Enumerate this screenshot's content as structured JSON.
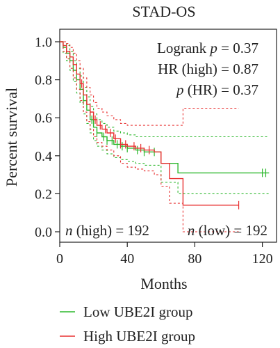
{
  "chart_data": {
    "type": "line",
    "title": "STAD-OS",
    "xlabel": "Months",
    "ylabel": "Percent survival",
    "xlim": [
      0,
      125
    ],
    "ylim": [
      0,
      1.05
    ],
    "x_ticks": [
      0,
      40,
      80,
      120
    ],
    "y_ticks": [
      0.0,
      0.2,
      0.4,
      0.6,
      0.8,
      1.0
    ],
    "x_tick_labels": [
      "0",
      "40",
      "80",
      "120"
    ],
    "y_tick_labels": [
      "0.0",
      "0.2",
      "0.4",
      "0.6",
      "0.8",
      "1.0"
    ],
    "grid": false,
    "legend_position": "bottom",
    "annotations": {
      "logrank": {
        "label": "Logrank ",
        "p_symbol": "p",
        "rest": " = 0.37"
      },
      "hr": "HR (high) = 0.87",
      "p_hr": {
        "p_symbol": "p",
        "rest": " (HR) = 0.37"
      },
      "n_high": {
        "n_symbol": "n",
        "rest": " (high) = 192"
      },
      "n_low": {
        "n_symbol": "n",
        "rest": " (low) = 192"
      }
    },
    "series": [
      {
        "name": "Low UBE2I group",
        "color": "#2db82d",
        "x": [
          0,
          2,
          4,
          6,
          8,
          10,
          12,
          14,
          16,
          18,
          20,
          22,
          25,
          28,
          32,
          36,
          40,
          45,
          50,
          55,
          60,
          65,
          70,
          80,
          90,
          100,
          110,
          120,
          124
        ],
        "y": [
          1.0,
          0.97,
          0.94,
          0.9,
          0.85,
          0.8,
          0.75,
          0.69,
          0.64,
          0.59,
          0.55,
          0.52,
          0.5,
          0.48,
          0.46,
          0.45,
          0.44,
          0.43,
          0.42,
          0.42,
          0.36,
          0.36,
          0.31,
          0.31,
          0.31,
          0.31,
          0.31,
          0.31,
          0.31
        ],
        "ci_upper": [
          1.0,
          1.0,
          0.98,
          0.95,
          0.9,
          0.86,
          0.82,
          0.76,
          0.71,
          0.66,
          0.62,
          0.59,
          0.57,
          0.55,
          0.53,
          0.52,
          0.51,
          0.5,
          0.5,
          0.5,
          0.5,
          0.5,
          0.5,
          0.5,
          0.5,
          0.5,
          0.5,
          0.5,
          0.5
        ],
        "ci_lower": [
          1.0,
          0.94,
          0.9,
          0.85,
          0.79,
          0.73,
          0.68,
          0.62,
          0.57,
          0.52,
          0.48,
          0.45,
          0.43,
          0.41,
          0.39,
          0.38,
          0.37,
          0.36,
          0.35,
          0.35,
          0.26,
          0.26,
          0.2,
          0.2,
          0.2,
          0.2,
          0.2,
          0.2,
          0.2
        ],
        "censor_x": [
          14,
          19,
          22,
          26,
          28,
          31,
          34,
          37,
          40,
          46,
          50,
          56,
          120,
          122
        ]
      },
      {
        "name": "High UBE2I group",
        "color": "#e83030",
        "x": [
          0,
          2,
          4,
          6,
          8,
          10,
          12,
          14,
          16,
          18,
          20,
          22,
          25,
          28,
          32,
          36,
          40,
          45,
          50,
          56,
          60,
          65,
          70,
          73,
          80,
          90,
          100,
          106
        ],
        "y": [
          1.0,
          0.98,
          0.95,
          0.92,
          0.88,
          0.83,
          0.78,
          0.72,
          0.67,
          0.63,
          0.59,
          0.56,
          0.54,
          0.52,
          0.49,
          0.46,
          0.45,
          0.44,
          0.43,
          0.42,
          0.36,
          0.28,
          0.28,
          0.14,
          0.14,
          0.14,
          0.14,
          0.14
        ],
        "ci_upper": [
          1.0,
          1.0,
          0.99,
          0.97,
          0.94,
          0.9,
          0.86,
          0.81,
          0.76,
          0.72,
          0.68,
          0.65,
          0.63,
          0.61,
          0.59,
          0.57,
          0.56,
          0.56,
          0.56,
          0.56,
          0.56,
          0.56,
          0.56,
          0.65,
          0.65,
          0.65,
          0.65,
          0.65
        ],
        "ci_lower": [
          1.0,
          0.95,
          0.91,
          0.86,
          0.81,
          0.75,
          0.69,
          0.63,
          0.58,
          0.54,
          0.5,
          0.47,
          0.45,
          0.43,
          0.4,
          0.36,
          0.34,
          0.33,
          0.32,
          0.3,
          0.24,
          0.15,
          0.15,
          0.0,
          0.0,
          0.0,
          0.0,
          0.0
        ],
        "censor_x": [
          13,
          18,
          21,
          24,
          27,
          30,
          33,
          36,
          39,
          44,
          48,
          53,
          106
        ]
      }
    ]
  }
}
